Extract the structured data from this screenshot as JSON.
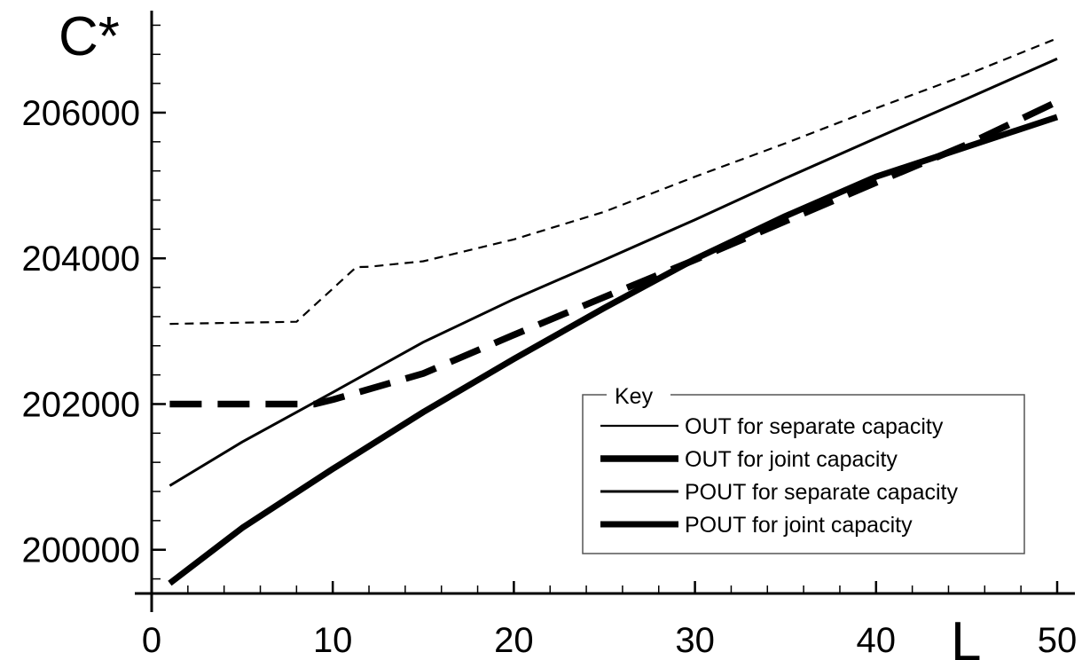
{
  "chart_data": {
    "type": "line",
    "ylabel": "C*",
    "xlabel": "L",
    "xlim": [
      0,
      50
    ],
    "ylim": [
      199400,
      207400
    ],
    "x_ticks": [
      0,
      10,
      20,
      30,
      40,
      50
    ],
    "x_tick_labels": [
      "0",
      "10",
      "20",
      "30",
      "40",
      "50"
    ],
    "y_ticks": [
      200000,
      202000,
      204000,
      206000
    ],
    "y_tick_labels": [
      "200000",
      "202000",
      "204000",
      "206000"
    ],
    "grid": false,
    "legend": {
      "title": "Key",
      "placement": "bottom-right"
    },
    "series": [
      {
        "name": "OUT for separate capacity",
        "style": "thin-dashed",
        "color": "#000000",
        "points": [
          [
            1,
            203100
          ],
          [
            8,
            203130
          ],
          [
            11.3,
            203880
          ],
          [
            12,
            203885
          ],
          [
            15,
            203960
          ],
          [
            20,
            204260
          ],
          [
            25,
            204640
          ],
          [
            30,
            205120
          ],
          [
            35,
            205580
          ],
          [
            40,
            206060
          ],
          [
            45,
            206520
          ],
          [
            50,
            207020
          ]
        ]
      },
      {
        "name": "OUT for joint capacity",
        "style": "thick-dashed",
        "color": "#000000",
        "points": [
          [
            1,
            202000
          ],
          [
            9,
            202000
          ],
          [
            10,
            202060
          ],
          [
            15,
            202420
          ],
          [
            20,
            202950
          ],
          [
            25,
            203470
          ],
          [
            30,
            203980
          ],
          [
            35,
            204510
          ],
          [
            40,
            205040
          ],
          [
            45,
            205560
          ],
          [
            50,
            206150
          ]
        ]
      },
      {
        "name": "POUT for separate capacity",
        "style": "thin-solid",
        "color": "#000000",
        "points": [
          [
            1,
            200880
          ],
          [
            5,
            201480
          ],
          [
            10,
            202160
          ],
          [
            15,
            202850
          ],
          [
            20,
            203440
          ],
          [
            25,
            203980
          ],
          [
            30,
            204530
          ],
          [
            35,
            205100
          ],
          [
            40,
            205650
          ],
          [
            45,
            206190
          ],
          [
            50,
            206740
          ]
        ]
      },
      {
        "name": "POUT for joint capacity",
        "style": "thick-solid",
        "color": "#000000",
        "points": [
          [
            1,
            199540
          ],
          [
            5,
            200300
          ],
          [
            10,
            201110
          ],
          [
            15,
            201890
          ],
          [
            20,
            202620
          ],
          [
            25,
            203320
          ],
          [
            30,
            203990
          ],
          [
            35,
            204580
          ],
          [
            40,
            205120
          ],
          [
            45,
            205530
          ],
          [
            50,
            205940
          ]
        ]
      }
    ]
  }
}
